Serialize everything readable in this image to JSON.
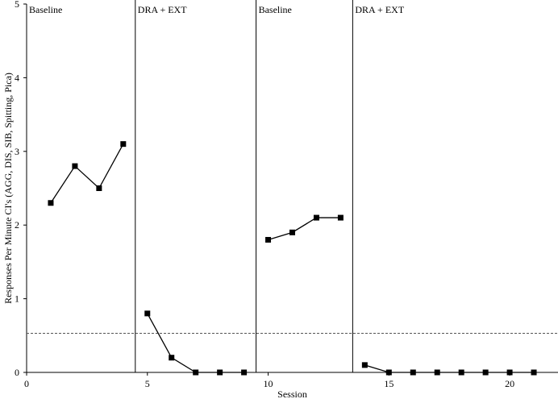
{
  "chart_data": {
    "type": "line",
    "xlabel": "Session",
    "ylabel": "Responses Per Minute CI's (AGG, DIS, SIB, Spitting, Pica)",
    "xlim": [
      0,
      22
    ],
    "ylim": [
      0,
      5
    ],
    "x_ticks": [
      0,
      5,
      10,
      15,
      20
    ],
    "y_ticks": [
      0,
      1,
      2,
      3,
      4,
      5
    ],
    "grid": false,
    "legend": "none",
    "marker": "square",
    "colors": {
      "series": "#000000",
      "phase_line": "#000000",
      "criterion_line": "#555555"
    },
    "criterion_line": {
      "y": 0.53,
      "style": "dashed"
    },
    "phase_change_lines": [
      4.5,
      9.5,
      13.5
    ],
    "phases": [
      {
        "label": "Baseline",
        "start": 0,
        "points": [
          [
            1,
            2.3
          ],
          [
            2,
            2.8
          ],
          [
            3,
            2.5
          ],
          [
            4,
            3.1
          ]
        ]
      },
      {
        "label": "DRA + EXT",
        "start": 4.5,
        "points": [
          [
            5,
            0.8
          ],
          [
            6,
            0.2
          ],
          [
            7,
            0
          ],
          [
            8,
            0
          ],
          [
            9,
            0
          ]
        ]
      },
      {
        "label": "Baseline",
        "start": 9.5,
        "points": [
          [
            10,
            1.8
          ],
          [
            11,
            1.9
          ],
          [
            12,
            2.1
          ],
          [
            13,
            2.1
          ]
        ]
      },
      {
        "label": "DRA + EXT",
        "start": 13.5,
        "points": [
          [
            14,
            0.1
          ],
          [
            15,
            0
          ],
          [
            16,
            0
          ],
          [
            17,
            0
          ],
          [
            18,
            0
          ],
          [
            19,
            0
          ],
          [
            20,
            0
          ],
          [
            21,
            0
          ]
        ]
      }
    ]
  }
}
